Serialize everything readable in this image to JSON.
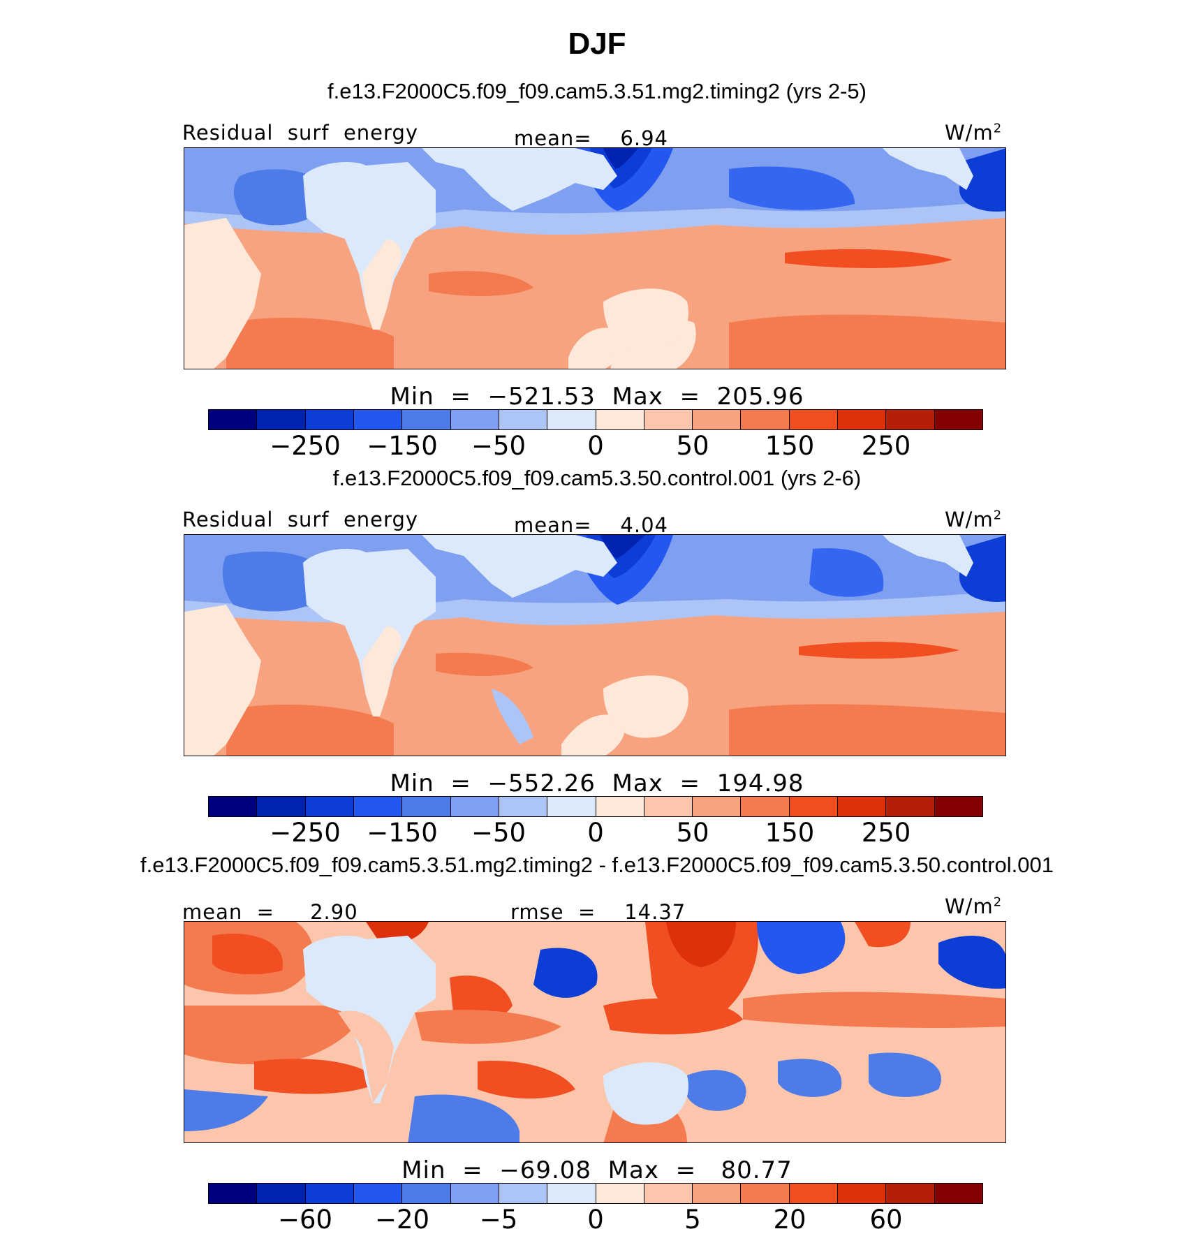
{
  "title": "DJF",
  "colors": [
    "#00007e",
    "#0022b0",
    "#0c3ed6",
    "#2357f0",
    "#4d7be8",
    "#7fa0f0",
    "#adc4f6",
    "#dbe9fb",
    "#fde8d9",
    "#fbc6ac",
    "#f7a37f",
    "#f47b4f",
    "#f14e22",
    "#df300c",
    "#b51e08",
    "#850000"
  ],
  "panels": [
    {
      "id": "test",
      "subtitle": "f.e13.F2000C5.f09_f09.cam5.3.51.mg2.timing2 (yrs 2-5)",
      "left_label": "Residual  surf  energy",
      "center_label": "mean=    6.94",
      "units": "W/m",
      "units_sup": "2",
      "min_max": "Min  =  −521.53  Max  =  205.96",
      "ticks": [
        "−250",
        "−150",
        "−50",
        "0",
        "50",
        "150",
        "250"
      ]
    },
    {
      "id": "control",
      "subtitle": "f.e13.F2000C5.f09_f09.cam5.3.50.control.001 (yrs 2-6)",
      "left_label": "Residual  surf  energy",
      "center_label": "mean=    4.04",
      "units": "W/m",
      "units_sup": "2",
      "min_max": "Min  =  −552.26  Max  =  194.98",
      "ticks": [
        "−250",
        "−150",
        "−50",
        "0",
        "50",
        "150",
        "250"
      ]
    },
    {
      "id": "diff",
      "subtitle": "f.e13.F2000C5.f09_f09.cam5.3.51.mg2.timing2 - f.e13.F2000C5.f09_f09.cam5.3.50.control.001",
      "left_label": "mean  =     2.90",
      "center_label": "rmse  =    14.37",
      "units": "W/m",
      "units_sup": "2",
      "min_max": "Min  =  −69.08  Max  =   80.77",
      "ticks": [
        "−60",
        "−20",
        "−5",
        "0",
        "5",
        "20",
        "60"
      ]
    }
  ]
}
